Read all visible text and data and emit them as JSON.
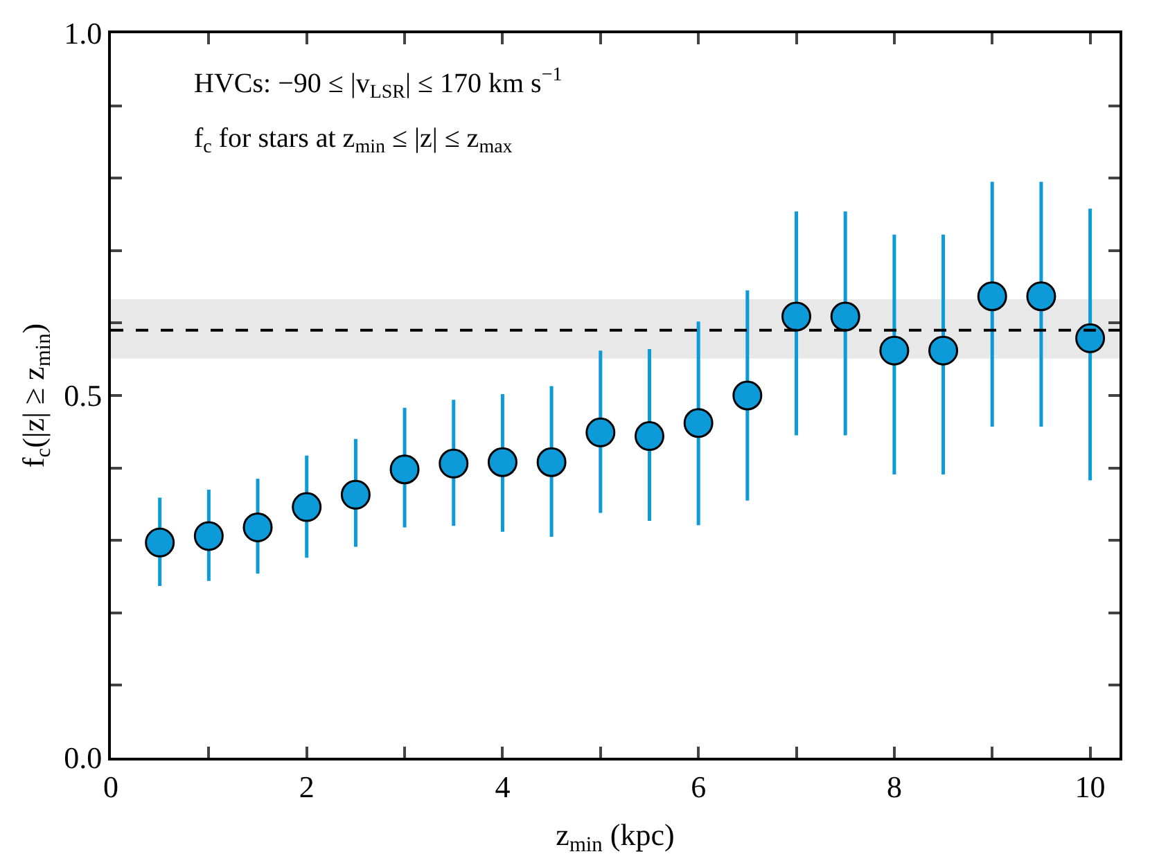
{
  "chart_data": {
    "type": "scatter",
    "xlabel": "z$_{min}$ (kpc)",
    "ylabel": "f$_{c}$(|z| ≥ z$_{min}$)",
    "annotations": [
      "HVCs: −90 ≤ |v$_{LSR}$| ≤ 170 km s$^{−1}$",
      "f$_{c}$ for stars at z$_{min}$ ≤ |z| ≤ z$_{max}$"
    ],
    "x": [
      0.5,
      1.0,
      1.5,
      2.0,
      2.5,
      3.0,
      3.5,
      4.0,
      4.5,
      5.0,
      5.5,
      6.0,
      6.5,
      7.0,
      7.5,
      8.0,
      8.5,
      9.0,
      9.5,
      10.0
    ],
    "series": [
      {
        "color": "#0d9ad8",
        "values": [
          0.297,
          0.306,
          0.318,
          0.346,
          0.363,
          0.398,
          0.406,
          0.408,
          0.408,
          0.449,
          0.444,
          0.462,
          0.5,
          0.609,
          0.609,
          0.562,
          0.562,
          0.637,
          0.637,
          0.579
        ],
        "errors": [
          [
            0.237,
            0.359
          ],
          [
            0.244,
            0.37
          ],
          [
            0.254,
            0.385
          ],
          [
            0.276,
            0.417
          ],
          [
            0.291,
            0.44
          ],
          [
            0.318,
            0.483
          ],
          [
            0.32,
            0.494
          ],
          [
            0.312,
            0.502
          ],
          [
            0.305,
            0.513
          ],
          [
            0.338,
            0.562
          ],
          [
            0.327,
            0.564
          ],
          [
            0.321,
            0.602
          ],
          [
            0.355,
            0.645
          ],
          [
            0.445,
            0.754
          ],
          [
            0.445,
            0.754
          ],
          [
            0.391,
            0.722
          ],
          [
            0.391,
            0.722
          ],
          [
            0.457,
            0.795
          ],
          [
            0.457,
            0.795
          ],
          [
            0.383,
            0.758
          ]
        ]
      }
    ],
    "marker": "circle",
    "xlim": [
      0,
      10.3
    ],
    "ylim": [
      0,
      1.0
    ],
    "xticks": [
      0,
      {
        "value": 1,
        "label": null
      },
      2,
      {
        "value": 3,
        "label": null
      },
      4,
      {
        "value": 5,
        "label": null
      },
      6,
      {
        "value": 7,
        "label": null
      },
      8,
      {
        "value": 9,
        "label": null
      },
      10
    ],
    "yticks": [
      {
        "value": 0,
        "label": "0.0"
      },
      {
        "value": 0.1,
        "label": null
      },
      {
        "value": 0.2,
        "label": null
      },
      {
        "value": 0.3,
        "label": null
      },
      {
        "value": 0.4,
        "label": null
      },
      {
        "value": 0.5,
        "label": "0.5"
      },
      {
        "value": 0.6,
        "label": null
      },
      {
        "value": 0.7,
        "label": null
      },
      {
        "value": 0.8,
        "label": null
      },
      {
        "value": 0.9,
        "label": null
      },
      {
        "value": 1.0,
        "label": "1.0"
      }
    ],
    "ref_lines": [
      {
        "axis": "y",
        "value": 0.59,
        "color": "#000000",
        "line_style": "dashed"
      }
    ],
    "bands": [
      {
        "axis": "y",
        "from": 0.551,
        "to": 0.633,
        "color": "#e8e8e8"
      }
    ],
    "grid": false
  }
}
